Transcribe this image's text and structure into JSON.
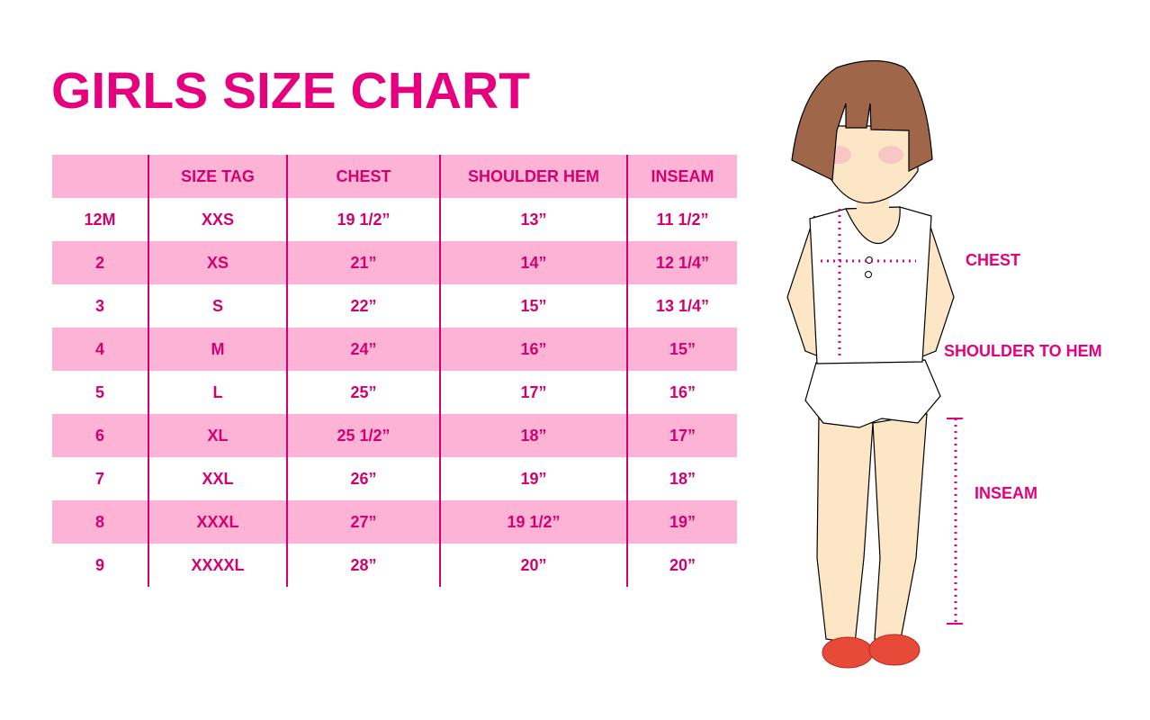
{
  "title": "GIRLS SIZE CHART",
  "table": {
    "headers": [
      "",
      "SIZE TAG",
      "CHEST",
      "SHOULDER HEM",
      "INSEAM"
    ],
    "rows": [
      [
        "12M",
        "XXS",
        "19 1/2”",
        "13”",
        "11 1/2”"
      ],
      [
        "2",
        "XS",
        "21”",
        "14”",
        "12 1/4”"
      ],
      [
        "3",
        "S",
        "22”",
        "15”",
        "13 1/4”"
      ],
      [
        "4",
        "M",
        "24”",
        "16”",
        "15”"
      ],
      [
        "5",
        "L",
        "25”",
        "17”",
        "16”"
      ],
      [
        "6",
        "XL",
        "25 1/2”",
        "18”",
        "17”"
      ],
      [
        "7",
        "XXL",
        "26”",
        "19”",
        "18”"
      ],
      [
        "8",
        "XXXL",
        "27”",
        "19 1/2”",
        "19”"
      ],
      [
        "9",
        "XXXXL",
        "28”",
        "20”",
        "20”"
      ]
    ]
  },
  "diagram": {
    "labels": {
      "chest": "CHEST",
      "shoulder_to_hem": "SHOULDER TO HEM",
      "inseam": "INSEAM"
    }
  },
  "colors": {
    "accent": "#e6007e",
    "stripe": "#fdb3d6",
    "hair": "#a0664a",
    "skin": "#fde6c6",
    "shoes": "#e84a3a"
  }
}
